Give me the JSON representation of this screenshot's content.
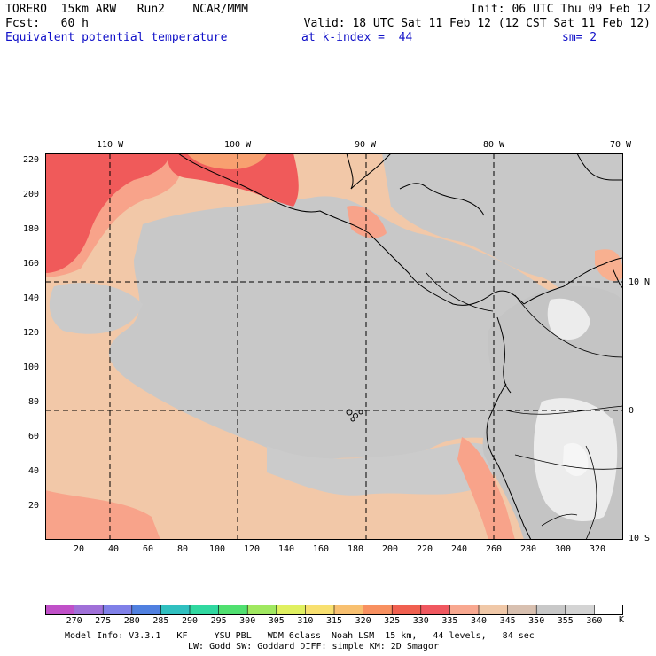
{
  "header": {
    "line1_left": "TORERO  15km ARW   Run2    NCAR/MMM",
    "line1_right": "Init: 06 UTC Thu 09 Feb 12",
    "line2_left": "Fcst:   60 h",
    "line2_right": "Valid: 18 UTC Sat 11 Feb 12 (12 CST Sat 11 Feb 12)",
    "line3_field": "Equivalent potential temperature",
    "line3_level": "at k-index =  44",
    "line3_sm": "sm= 2"
  },
  "lon_ticks": [
    "110 W",
    "100 W",
    "90 W",
    "80 W",
    "70 W"
  ],
  "lat_ticks": [
    "10 N",
    "0",
    "10 S"
  ],
  "y_grid_labels": [
    "220",
    "200",
    "180",
    "160",
    "140",
    "120",
    "100",
    "80",
    "60",
    "40",
    "20"
  ],
  "x_grid_labels": [
    "20",
    "40",
    "60",
    "80",
    "100",
    "120",
    "140",
    "160",
    "180",
    "200",
    "220",
    "240",
    "260",
    "280",
    "300",
    "320"
  ],
  "colorbar": {
    "unit": "K",
    "labels": [
      "270",
      "275",
      "280",
      "285",
      "290",
      "295",
      "300",
      "305",
      "310",
      "315",
      "320",
      "325",
      "330",
      "335",
      "340",
      "345",
      "350",
      "355",
      "360"
    ],
    "colors": [
      "#c050c8",
      "#a070d8",
      "#8080e8",
      "#5080e0",
      "#30c0c0",
      "#30d8a0",
      "#50e070",
      "#a0e860",
      "#e0f060",
      "#f8e070",
      "#f8c070",
      "#f89060",
      "#f06050",
      "#f05860",
      "#f8a890",
      "#f0c8a8",
      "#d8c0b0",
      "#c8c8c8",
      "#d4d4d4",
      "#ffffff"
    ]
  },
  "footer": {
    "line1": "Model Info: V3.3.1   KF     YSU PBL   WDM 6class  Noah LSM  15 km,   44 levels,   84 sec",
    "line2": "LW: Godd SW: Goddard DIFF: simple KM: 2D Smagor"
  },
  "map_colors": {
    "base": "#f2c8a8",
    "gray": "#c8c8c8",
    "light": "#e8e8e8",
    "white": "#f6f6f6",
    "red": "#f05a5a",
    "salmon": "#f8a38a",
    "orange": "#f8b070"
  }
}
